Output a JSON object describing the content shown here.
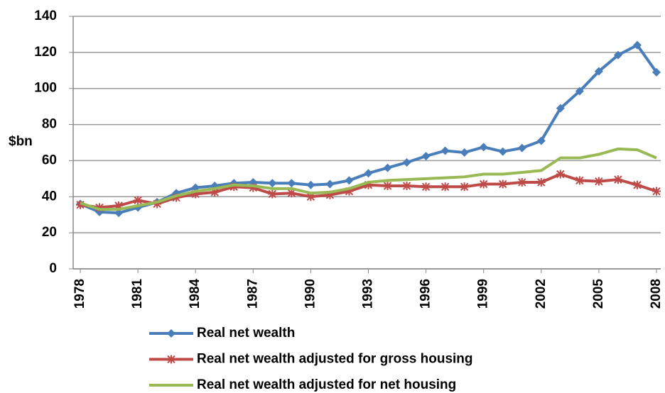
{
  "chart_data": {
    "type": "line",
    "ylabel": "$bn",
    "x": [
      1978,
      1979,
      1980,
      1981,
      1982,
      1983,
      1984,
      1985,
      1986,
      1987,
      1988,
      1989,
      1990,
      1991,
      1992,
      1993,
      1994,
      1995,
      1996,
      1997,
      1998,
      1999,
      2000,
      2001,
      2002,
      2003,
      2004,
      2005,
      2006,
      2007,
      2008
    ],
    "xlim": [
      1978,
      2008
    ],
    "xticks": [
      1978,
      1981,
      1984,
      1987,
      1990,
      1993,
      1996,
      1999,
      2002,
      2005,
      2008
    ],
    "ylim": [
      0,
      140
    ],
    "yticks": [
      0,
      20,
      40,
      60,
      80,
      100,
      120,
      140
    ],
    "grid": true,
    "legend": "bottom",
    "series": [
      {
        "name": "Real net wealth",
        "color": "#4a7ebb",
        "marker": "diamond",
        "values": [
          36,
          31.5,
          31,
          34,
          37,
          42,
          45,
          46,
          47.5,
          48,
          47.5,
          47.5,
          46.5,
          47,
          49,
          53,
          56,
          59,
          62.5,
          65.5,
          64.5,
          67.5,
          65,
          67,
          71,
          89,
          98.5,
          109.5,
          118.5,
          124,
          109
        ]
      },
      {
        "name": "Real net wealth adjusted for gross housing",
        "color": "#be4b48",
        "marker": "asterisk",
        "values": [
          35.5,
          34,
          35,
          38,
          36,
          39.5,
          41.5,
          42.5,
          45.5,
          45,
          41.5,
          42,
          40,
          41,
          43,
          46.5,
          46,
          46,
          45.5,
          45.5,
          45.5,
          47,
          47,
          48,
          48,
          52.5,
          49,
          48.5,
          49.5,
          46.5,
          43
        ]
      },
      {
        "name": "Real net wealth adjusted for net housing",
        "color": "#98b954",
        "marker": "none",
        "values": [
          36.5,
          33,
          33,
          35,
          37,
          40.5,
          43,
          44.5,
          46.5,
          46,
          44.5,
          44.5,
          42,
          42.5,
          44.5,
          48,
          49,
          49.5,
          50,
          50.5,
          51,
          52.5,
          52.5,
          53.5,
          54.5,
          61.5,
          61.5,
          63.5,
          66.5,
          66,
          61.5
        ]
      }
    ]
  }
}
